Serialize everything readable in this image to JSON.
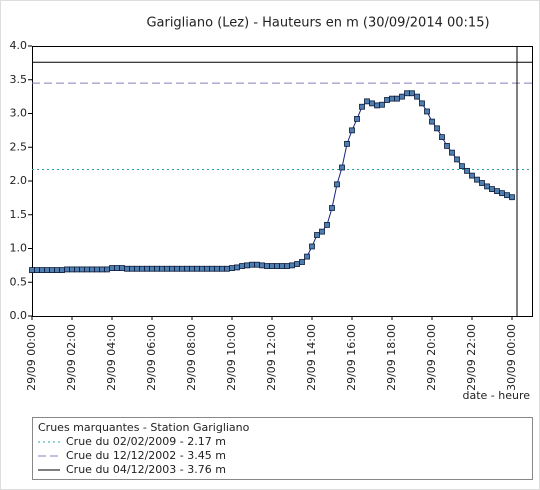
{
  "chart_data": {
    "type": "line",
    "title": "Garigliano (Lez) - Hauteurs en m (30/09/2014 00:15)",
    "x_label": "date - heure",
    "xlim": [
      0,
      25
    ],
    "ylim": [
      0,
      4
    ],
    "xticks": [
      {
        "value": 0,
        "label": "29/09 00:00"
      },
      {
        "value": 2,
        "label": "29/09 02:00"
      },
      {
        "value": 4,
        "label": "29/09 04:00"
      },
      {
        "value": 6,
        "label": "29/09 06:00"
      },
      {
        "value": 8,
        "label": "29/09 08:00"
      },
      {
        "value": 10,
        "label": "29/09 10:00"
      },
      {
        "value": 12,
        "label": "29/09 12:00"
      },
      {
        "value": 14,
        "label": "29/09 14:00"
      },
      {
        "value": 16,
        "label": "29/09 16:00"
      },
      {
        "value": 18,
        "label": "29/09 18:00"
      },
      {
        "value": 20,
        "label": "29/09 20:00"
      },
      {
        "value": 22,
        "label": "29/09 22:00"
      },
      {
        "value": 24,
        "label": "30/09 00:00"
      }
    ],
    "yticks": [
      {
        "value": 0,
        "label": "0.0"
      },
      {
        "value": 0.5,
        "label": "0.5"
      },
      {
        "value": 1,
        "label": "1.0"
      },
      {
        "value": 1.5,
        "label": "1.5"
      },
      {
        "value": 2,
        "label": "2.0"
      },
      {
        "value": 2.5,
        "label": "2.5"
      },
      {
        "value": 3,
        "label": "3.0"
      },
      {
        "value": 3.5,
        "label": "3.5"
      },
      {
        "value": 4,
        "label": "4.0"
      }
    ],
    "current_time": 24.25,
    "x": [
      0,
      0.25,
      0.5,
      0.75,
      1,
      1.25,
      1.5,
      1.75,
      2,
      2.25,
      2.5,
      2.75,
      3,
      3.25,
      3.5,
      3.75,
      4,
      4.25,
      4.5,
      4.75,
      5,
      5.25,
      5.5,
      5.75,
      6,
      6.25,
      6.5,
      6.75,
      7,
      7.25,
      7.5,
      7.75,
      8,
      8.25,
      8.5,
      8.75,
      9,
      9.25,
      9.5,
      9.75,
      10,
      10.25,
      10.5,
      10.75,
      11,
      11.25,
      11.5,
      11.75,
      12,
      12.25,
      12.5,
      12.75,
      13,
      13.25,
      13.5,
      13.75,
      14,
      14.25,
      14.5,
      14.75,
      15,
      15.25,
      15.5,
      15.75,
      16,
      16.25,
      16.5,
      16.75,
      17,
      17.25,
      17.5,
      17.75,
      18,
      18.25,
      18.5,
      18.75,
      19,
      19.25,
      19.5,
      19.75,
      20,
      20.25,
      20.5,
      20.75,
      21,
      21.25,
      21.5,
      21.75,
      22,
      22.25,
      22.5,
      22.75,
      23,
      23.25,
      23.5,
      23.75,
      24
    ],
    "series": [
      {
        "color": "#1a237e",
        "marker_color": "#4f7fae",
        "values": [
          0.68,
          0.68,
          0.68,
          0.68,
          0.68,
          0.68,
          0.68,
          0.69,
          0.69,
          0.69,
          0.69,
          0.69,
          0.69,
          0.69,
          0.69,
          0.69,
          0.71,
          0.71,
          0.71,
          0.7,
          0.7,
          0.7,
          0.7,
          0.7,
          0.7,
          0.7,
          0.7,
          0.7,
          0.7,
          0.7,
          0.7,
          0.7,
          0.7,
          0.7,
          0.7,
          0.7,
          0.7,
          0.7,
          0.7,
          0.7,
          0.71,
          0.72,
          0.74,
          0.75,
          0.76,
          0.76,
          0.75,
          0.74,
          0.74,
          0.74,
          0.74,
          0.74,
          0.75,
          0.77,
          0.8,
          0.88,
          1.03,
          1.2,
          1.25,
          1.35,
          1.6,
          1.95,
          2.2,
          2.55,
          2.75,
          2.92,
          3.1,
          3.18,
          3.15,
          3.12,
          3.13,
          3.2,
          3.22,
          3.22,
          3.25,
          3.3,
          3.3,
          3.25,
          3.15,
          3.03,
          2.88,
          2.78,
          2.65,
          2.52,
          2.42,
          2.32,
          2.22,
          2.15,
          2.08,
          2.02,
          1.97,
          1.92,
          1.88,
          1.85,
          1.82,
          1.79,
          1.76
        ]
      }
    ],
    "legend_title": "Crues marquantes - Station Garigliano",
    "reference_lines": [
      {
        "name": "Crue du 02/02/2009 - 2.17 m",
        "value": 2.17,
        "color": "#2aa7a7",
        "dash": "2,3"
      },
      {
        "name": "Crue du 12/12/2002 - 3.45 m",
        "value": 3.45,
        "color": "#8a7fc0",
        "dash": "8,4"
      },
      {
        "name": "Crue du 04/12/2003 - 3.76 m",
        "value": 3.76,
        "color": "#000000",
        "dash": "none"
      }
    ]
  }
}
